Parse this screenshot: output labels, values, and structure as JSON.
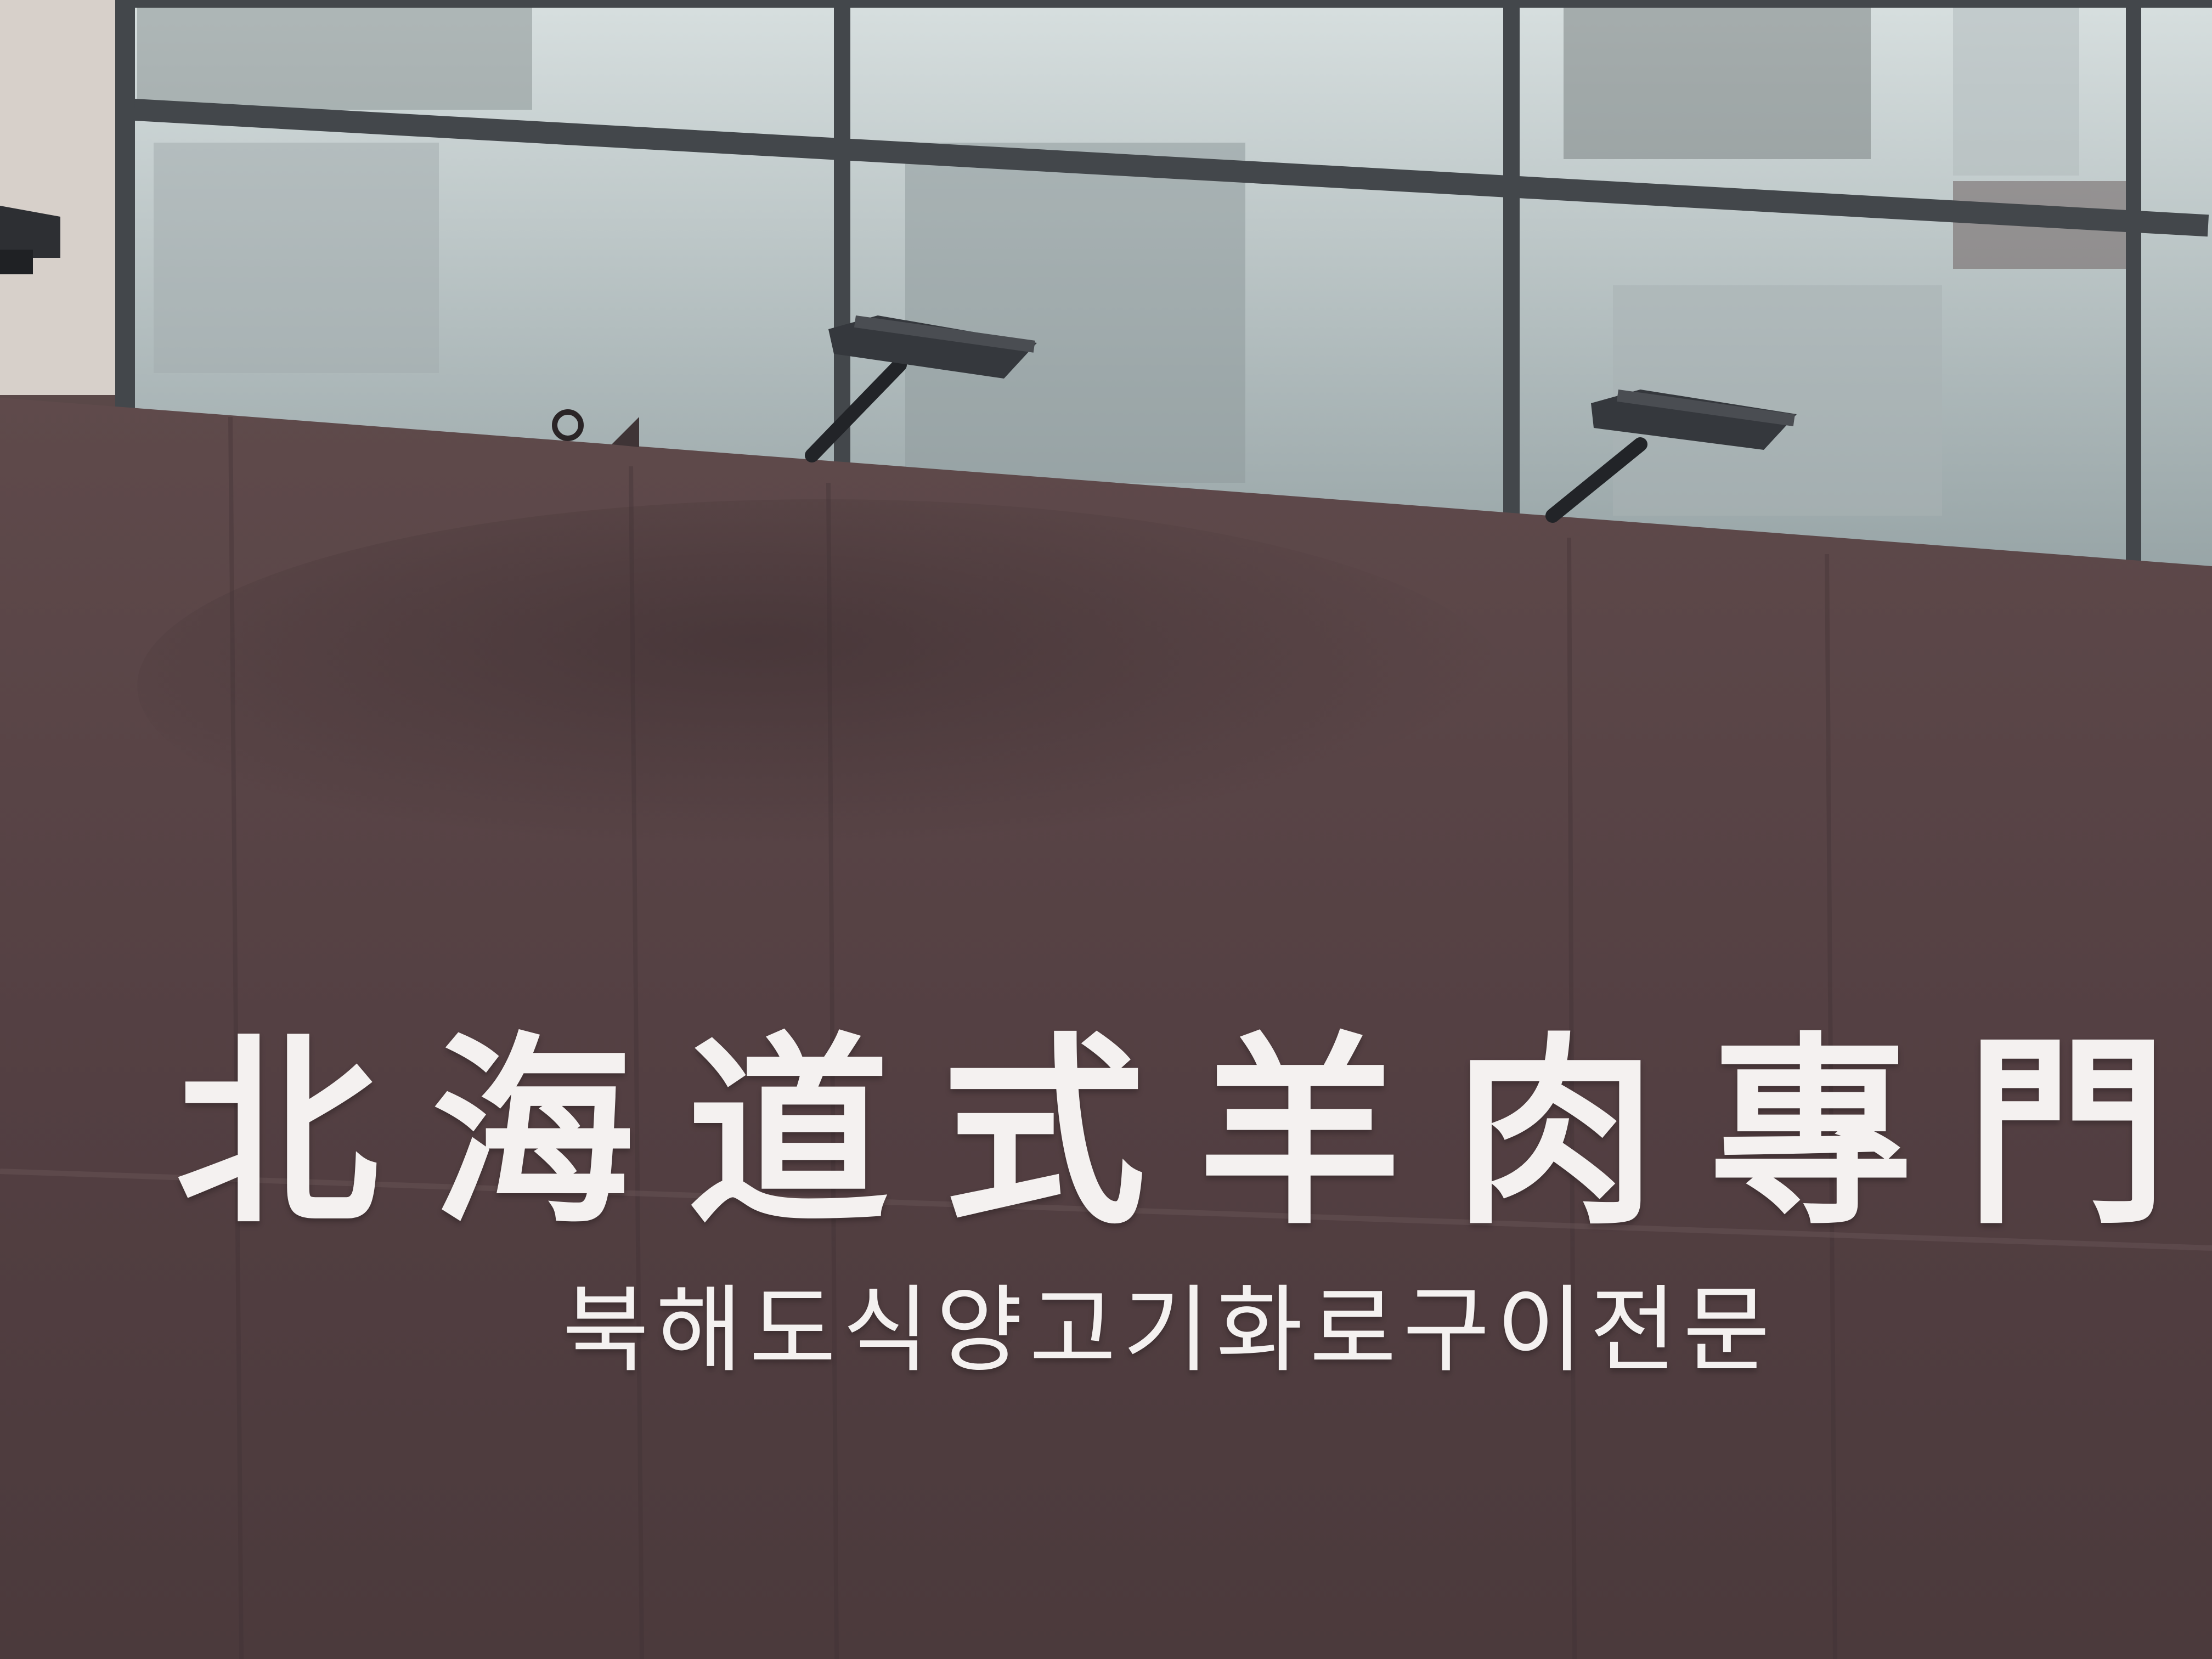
{
  "sign": {
    "main_text": "北海道式羊肉專門",
    "sub_text": "북해도식양고기화로구이전문"
  },
  "colors": {
    "facade": "#58464a",
    "glass": "#b7c2c3",
    "frame": "#3e4246",
    "lettering": "#f4f1f0",
    "wall": "#d8d1cb"
  }
}
